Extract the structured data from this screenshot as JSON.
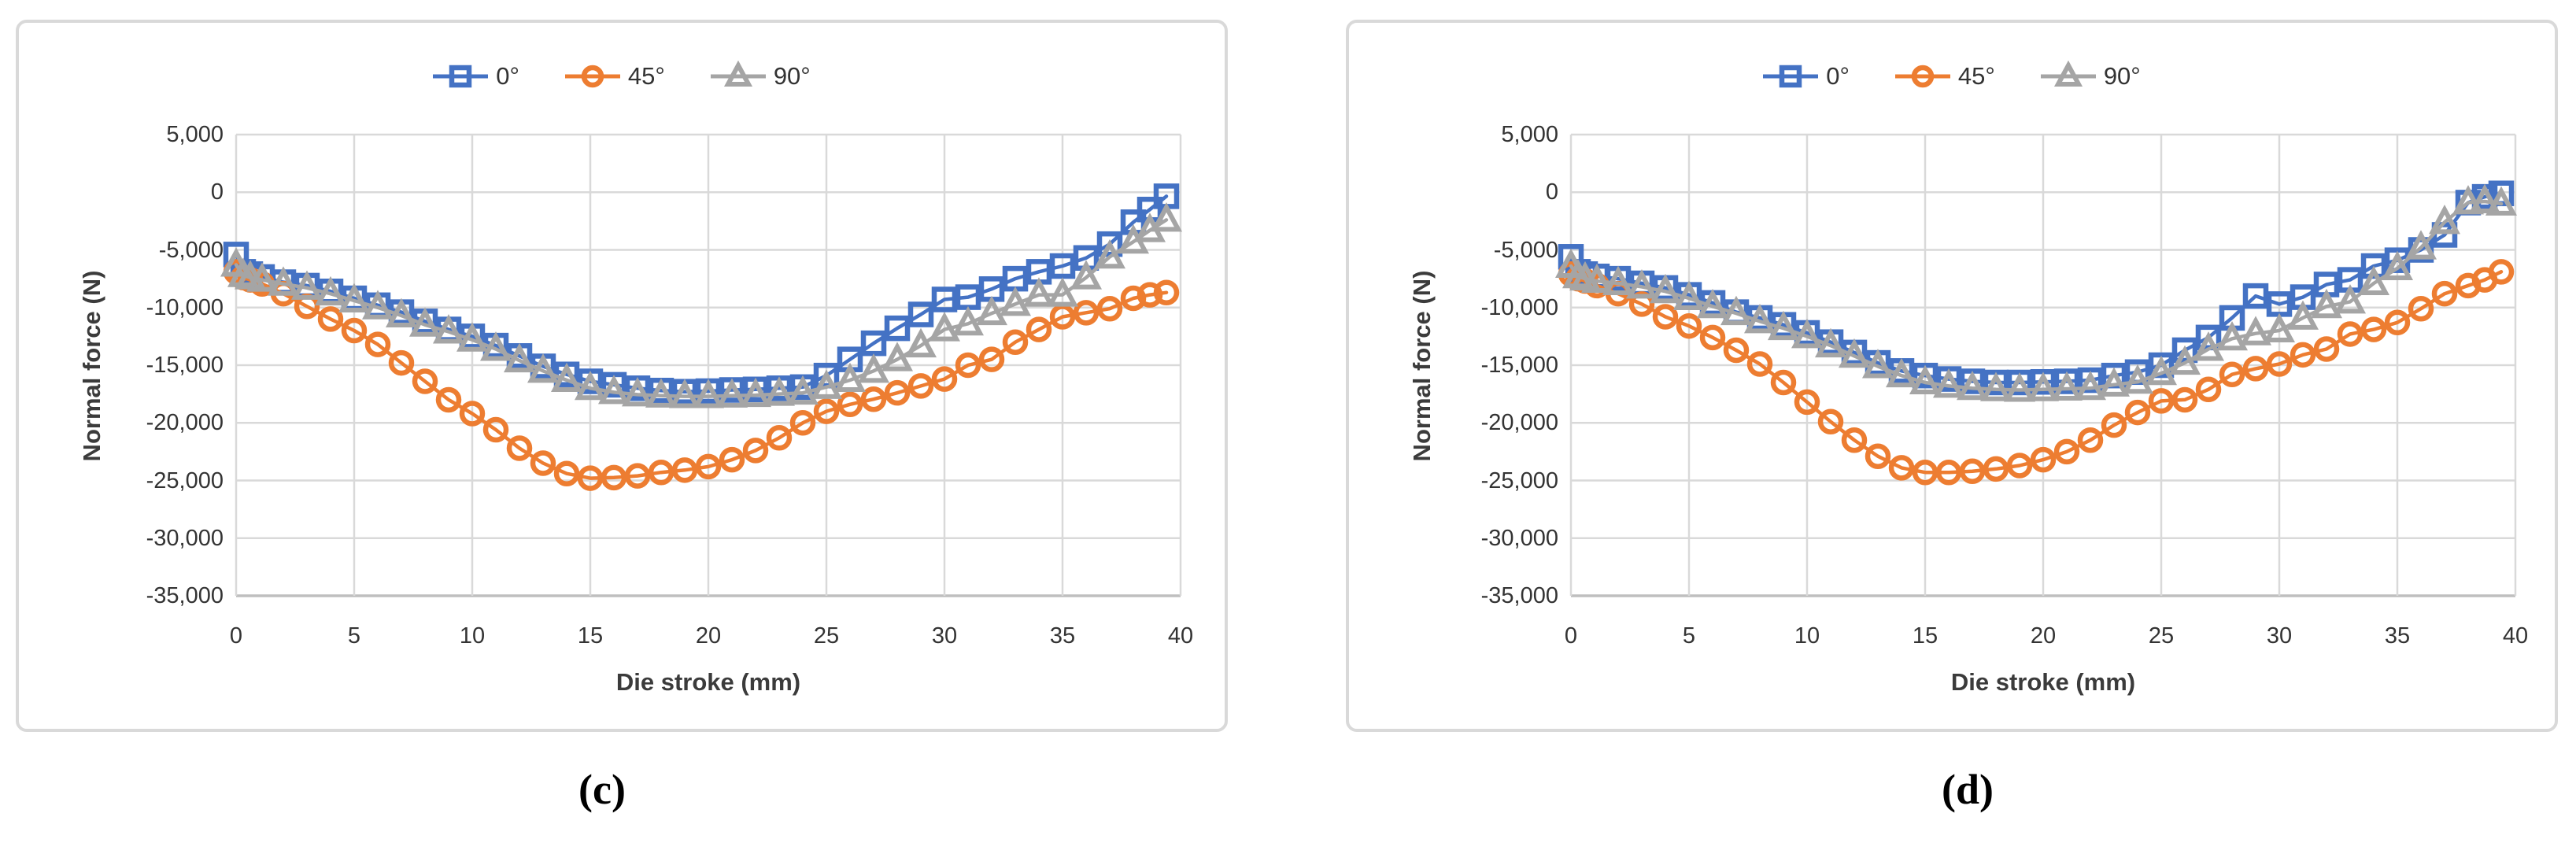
{
  "figure": {
    "captions": {
      "left": "(c)",
      "right": "(d)"
    }
  },
  "colors": {
    "series_blue": "#4472C4",
    "series_orange": "#ED7D31",
    "series_gray": "#A5A5A5",
    "gridline": "#D9D9D9",
    "axis_line": "#BFBFBF",
    "tick_text": "#333333",
    "frame_border": "#D9D9D9"
  },
  "chart_data": [
    {
      "type": "line",
      "caption": "(c)",
      "x_axis": {
        "title": "Die stroke (mm)",
        "min": 0,
        "max": 40,
        "tick_step": 5,
        "ticks": [
          0,
          5,
          10,
          15,
          20,
          25,
          30,
          35,
          40
        ],
        "tick_labels": [
          "0",
          "5",
          "10",
          "15",
          "20",
          "25",
          "30",
          "35",
          "40"
        ]
      },
      "y_axis": {
        "title": "Normal force (N)",
        "min": -35000,
        "max": 5000,
        "tick_step": 5000,
        "ticks": [
          5000,
          0,
          -5000,
          -10000,
          -15000,
          -20000,
          -25000,
          -30000,
          -35000
        ],
        "tick_labels": [
          "5,000",
          "0",
          "-5,000",
          "-10,000",
          "-15,000",
          "-20,000",
          "-25,000",
          "-30,000",
          "-35,000"
        ]
      },
      "legend_position": "top",
      "grid": true,
      "x": [
        0,
        0.3,
        0.6,
        1.1,
        2,
        3,
        4,
        5,
        6,
        7,
        8,
        9,
        10,
        11,
        12,
        13,
        14,
        15,
        16,
        17,
        18,
        19,
        20,
        21,
        22,
        23,
        24,
        25,
        26,
        27,
        28,
        29,
        30,
        31,
        32,
        33,
        34,
        35,
        36,
        37,
        38,
        38.7,
        39.4
      ],
      "series": [
        {
          "name": "0°",
          "marker": "square",
          "color": "#4472C4",
          "values": [
            -5400,
            -6900,
            -7100,
            -7350,
            -7800,
            -8100,
            -8600,
            -9200,
            -9800,
            -10400,
            -11200,
            -11900,
            -12500,
            -13300,
            -14200,
            -15100,
            -15800,
            -16400,
            -16700,
            -17000,
            -17200,
            -17300,
            -17250,
            -17150,
            -17100,
            -17000,
            -16900,
            -15900,
            -14500,
            -13100,
            -11800,
            -10600,
            -9300,
            -9100,
            -8400,
            -7500,
            -6900,
            -6400,
            -5700,
            -4500,
            -2600,
            -1500,
            -350
          ]
        },
        {
          "name": "45°",
          "marker": "circle",
          "color": "#ED7D31",
          "values": [
            -6900,
            -7400,
            -7600,
            -7950,
            -8800,
            -9900,
            -11000,
            -12000,
            -13200,
            -14800,
            -16400,
            -18000,
            -19200,
            -20600,
            -22200,
            -23500,
            -24400,
            -24800,
            -24750,
            -24600,
            -24300,
            -24100,
            -23800,
            -23200,
            -22400,
            -21300,
            -20000,
            -19000,
            -18400,
            -17950,
            -17400,
            -16800,
            -16200,
            -15000,
            -14500,
            -13000,
            -11900,
            -10800,
            -10450,
            -10100,
            -9200,
            -8900,
            -8700
          ]
        },
        {
          "name": "90°",
          "marker": "triangle",
          "color": "#A5A5A5",
          "values": [
            -6300,
            -7200,
            -7400,
            -7600,
            -7950,
            -8300,
            -8800,
            -9400,
            -10000,
            -10700,
            -11500,
            -12100,
            -12800,
            -13600,
            -14600,
            -15500,
            -16300,
            -17000,
            -17350,
            -17550,
            -17650,
            -17700,
            -17700,
            -17650,
            -17600,
            -17500,
            -17400,
            -16900,
            -16300,
            -15500,
            -14500,
            -13300,
            -11900,
            -11400,
            -10500,
            -9700,
            -8900,
            -8900,
            -7400,
            -5600,
            -4300,
            -3300,
            -2400
          ]
        }
      ]
    },
    {
      "type": "line",
      "caption": "(d)",
      "x_axis": {
        "title": "Die stroke (mm)",
        "min": 0,
        "max": 40,
        "tick_step": 5,
        "ticks": [
          0,
          5,
          10,
          15,
          20,
          25,
          30,
          35,
          40
        ],
        "tick_labels": [
          "0",
          "5",
          "10",
          "15",
          "20",
          "25",
          "30",
          "35",
          "40"
        ]
      },
      "y_axis": {
        "title": "Normal force (N)",
        "min": -35000,
        "max": 5000,
        "tick_step": 5000,
        "ticks": [
          5000,
          0,
          -5000,
          -10000,
          -15000,
          -20000,
          -25000,
          -30000,
          -35000
        ],
        "tick_labels": [
          "5,000",
          "0",
          "-5,000",
          "-10,000",
          "-15,000",
          "-20,000",
          "-25,000",
          "-30,000",
          "-35,000"
        ]
      },
      "legend_position": "top",
      "grid": true,
      "x": [
        0,
        0.3,
        0.6,
        1.1,
        2,
        3,
        4,
        5,
        6,
        7,
        8,
        9,
        10,
        11,
        12,
        13,
        14,
        15,
        16,
        17,
        18,
        19,
        20,
        21,
        22,
        23,
        24,
        25,
        26,
        27,
        28,
        29,
        30,
        31,
        32,
        33,
        34,
        35,
        36,
        37,
        38,
        38.7,
        39.4
      ],
      "series": [
        {
          "name": "0°",
          "marker": "square",
          "color": "#4472C4",
          "values": [
            -5600,
            -6900,
            -7100,
            -7300,
            -7500,
            -7900,
            -8300,
            -8900,
            -9600,
            -10400,
            -10900,
            -11500,
            -12200,
            -13000,
            -13900,
            -14800,
            -15500,
            -15900,
            -16200,
            -16400,
            -16500,
            -16500,
            -16450,
            -16400,
            -16300,
            -15900,
            -15600,
            -15000,
            -13700,
            -12600,
            -10900,
            -9000,
            -9700,
            -9100,
            -8000,
            -7600,
            -6400,
            -5900,
            -5000,
            -3700,
            -900,
            -400,
            -100
          ]
        },
        {
          "name": "45°",
          "marker": "circle",
          "color": "#ED7D31",
          "values": [
            -7100,
            -7500,
            -7700,
            -8100,
            -8800,
            -9700,
            -10800,
            -11600,
            -12600,
            -13700,
            -14900,
            -16500,
            -18200,
            -19900,
            -21500,
            -22900,
            -23900,
            -24300,
            -24300,
            -24200,
            -24000,
            -23700,
            -23200,
            -22500,
            -21500,
            -20200,
            -19100,
            -18100,
            -18000,
            -17100,
            -15800,
            -15300,
            -14900,
            -14100,
            -13600,
            -12300,
            -11900,
            -11300,
            -10100,
            -8800,
            -8100,
            -7600,
            -6900
          ]
        },
        {
          "name": "90°",
          "marker": "triangle",
          "color": "#A5A5A5",
          "values": [
            -6400,
            -7300,
            -7500,
            -7700,
            -7900,
            -8200,
            -8600,
            -9200,
            -9900,
            -10500,
            -11200,
            -11800,
            -12500,
            -13300,
            -14200,
            -15100,
            -15900,
            -16500,
            -16800,
            -17000,
            -17100,
            -17150,
            -17100,
            -17050,
            -17000,
            -16700,
            -16450,
            -15700,
            -14800,
            -13600,
            -12700,
            -12250,
            -12000,
            -10900,
            -9900,
            -9500,
            -7900,
            -6600,
            -4800,
            -2600,
            -900,
            -800,
            -1000
          ]
        }
      ]
    }
  ]
}
